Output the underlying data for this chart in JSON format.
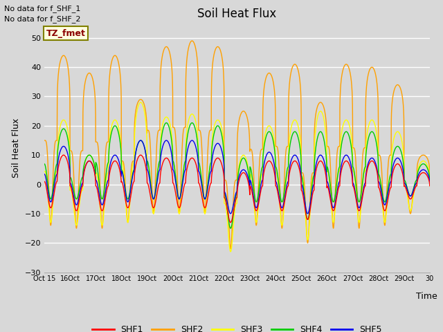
{
  "title": "Soil Heat Flux",
  "ylabel": "Soil Heat Flux",
  "xlabel": "Time",
  "ylim": [
    -30,
    55
  ],
  "yticks": [
    -30,
    -20,
    -10,
    0,
    10,
    20,
    30,
    40,
    50
  ],
  "background_color": "#d8d8d8",
  "plot_bg_color": "#d8d8d8",
  "annotations": [
    "No data for f_SHF_1",
    "No data for f_SHF_2"
  ],
  "legend_label": "TZ_fmet",
  "series_colors": {
    "SHF1": "#ff0000",
    "SHF2": "#ffa000",
    "SHF3": "#ffff00",
    "SHF4": "#00cc00",
    "SHF5": "#0000ee"
  },
  "n_days": 15,
  "start_day": 15,
  "points_per_day": 240,
  "shf2_peaks": [
    44,
    38,
    44,
    29,
    47,
    49,
    47,
    25,
    38,
    41,
    28,
    41,
    40,
    34,
    10
  ],
  "shf2_troughs": [
    -14,
    -15,
    -15,
    -13,
    -10,
    -10,
    -10,
    -22,
    -14,
    -15,
    -20,
    -15,
    -15,
    -14,
    -10
  ],
  "shf3_peaks": [
    22,
    10,
    22,
    28,
    23,
    24,
    22,
    10,
    20,
    22,
    25,
    22,
    22,
    18,
    8
  ],
  "shf3_troughs": [
    -13,
    -14,
    -14,
    -13,
    -10,
    -10,
    -10,
    -23,
    -13,
    -14,
    -19,
    -13,
    -13,
    -13,
    -9
  ],
  "shf4_peaks": [
    19,
    10,
    20,
    15,
    21,
    21,
    20,
    9,
    18,
    18,
    18,
    18,
    18,
    13,
    7
  ],
  "shf4_troughs": [
    -5,
    -5,
    -5,
    -5,
    -5,
    -5,
    -5,
    -15,
    -6,
    -6,
    -12,
    -6,
    -6,
    -6,
    -4
  ],
  "shf5_peaks": [
    13,
    8,
    10,
    15,
    15,
    15,
    14,
    5,
    11,
    10,
    10,
    10,
    9,
    9,
    5
  ],
  "shf5_troughs": [
    -6,
    -7,
    -7,
    -6,
    -5,
    -5,
    -5,
    -10,
    -8,
    -8,
    -10,
    -8,
    -8,
    -7,
    -4
  ],
  "shf1_peaks": [
    10,
    8,
    8,
    10,
    9,
    9,
    9,
    4,
    8,
    8,
    8,
    8,
    8,
    7,
    4
  ],
  "shf1_troughs": [
    -8,
    -9,
    -9,
    -8,
    -8,
    -8,
    -8,
    -13,
    -9,
    -9,
    -12,
    -9,
    -9,
    -9,
    -5
  ]
}
